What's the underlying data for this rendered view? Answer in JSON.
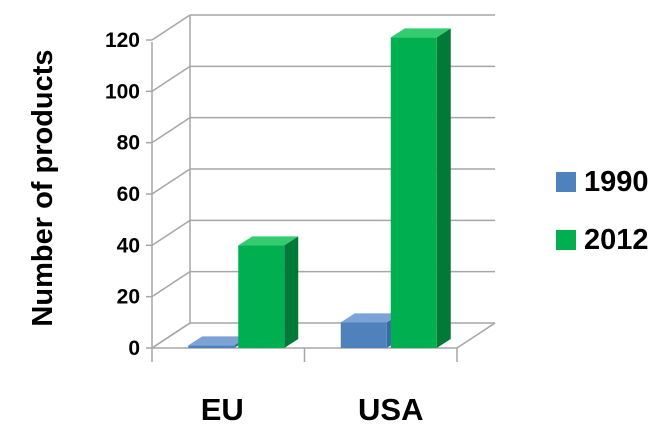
{
  "chart_data": {
    "type": "bar",
    "categories": [
      "EU",
      "USA"
    ],
    "series": [
      {
        "name": "1990",
        "values": [
          1,
          10
        ]
      },
      {
        "name": "2012",
        "values": [
          40,
          121
        ]
      }
    ],
    "ylabel": "Number of products",
    "ylim": [
      0,
      120
    ],
    "yticks": [
      0,
      20,
      40,
      60,
      80,
      100,
      120
    ],
    "grid": true,
    "legend": "right",
    "style": "3d-column",
    "colors": {
      "1990": {
        "front": "#4f81bd",
        "top": "#7ba3d6",
        "side": "#3a6aa4"
      },
      "2012": {
        "front": "#00b050",
        "top": "#33cc6e",
        "side": "#007a36"
      },
      "gridline": "#a6a6a6",
      "wall": "#bfbfbf"
    }
  }
}
